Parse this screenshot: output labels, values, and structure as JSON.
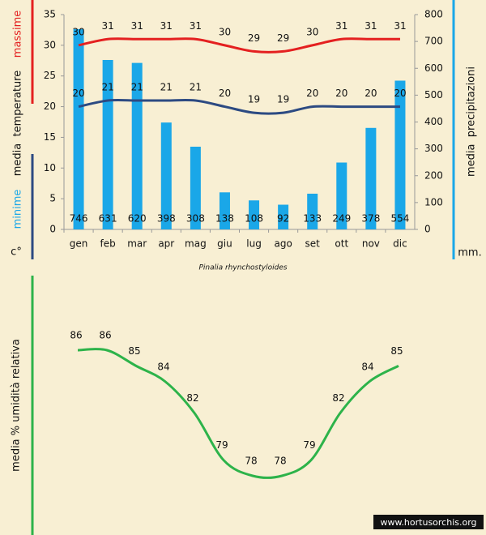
{
  "chart_data": [
    {
      "type": "combo",
      "categories": [
        "gen",
        "feb",
        "mar",
        "apr",
        "mag",
        "giu",
        "lug",
        "ago",
        "set",
        "ott",
        "nov",
        "dic"
      ],
      "series": [
        {
          "type": "bar",
          "axis": "y2",
          "color": "#1aa7e8",
          "values": [
            746,
            631,
            620,
            398,
            308,
            138,
            108,
            92,
            133,
            249,
            378,
            554
          ]
        },
        {
          "type": "line",
          "color": "#e42020",
          "values": [
            30,
            31,
            31,
            31,
            31,
            30,
            29,
            29,
            30,
            31,
            31,
            31
          ]
        },
        {
          "type": "line",
          "color": "#2c4a82",
          "values": [
            20,
            21,
            21,
            21,
            21,
            20,
            19,
            19,
            20,
            20,
            20,
            20
          ]
        }
      ],
      "ylim": [
        0,
        35
      ],
      "yticks": [
        0,
        5,
        10,
        15,
        20,
        25,
        30,
        35
      ],
      "y2lim": [
        0,
        800
      ],
      "y2ticks": [
        0,
        100,
        200,
        300,
        400,
        500,
        600,
        700,
        800
      ],
      "left_label_top": "massime",
      "left_label_middle": "media  temperature",
      "left_label_bottom": "minime",
      "left_unit": "c°",
      "right_label": "media  precipitazioni",
      "right_unit": "mm."
    },
    {
      "type": "line",
      "color": "#2db34a",
      "values": [
        86,
        86,
        85,
        84,
        82,
        79,
        78,
        78,
        79,
        82,
        84,
        85
      ],
      "ylabel": "media % umidità relativa"
    }
  ],
  "caption": "Pinalia rhynchostyloides",
  "watermark": "www.hortusorchis.org"
}
